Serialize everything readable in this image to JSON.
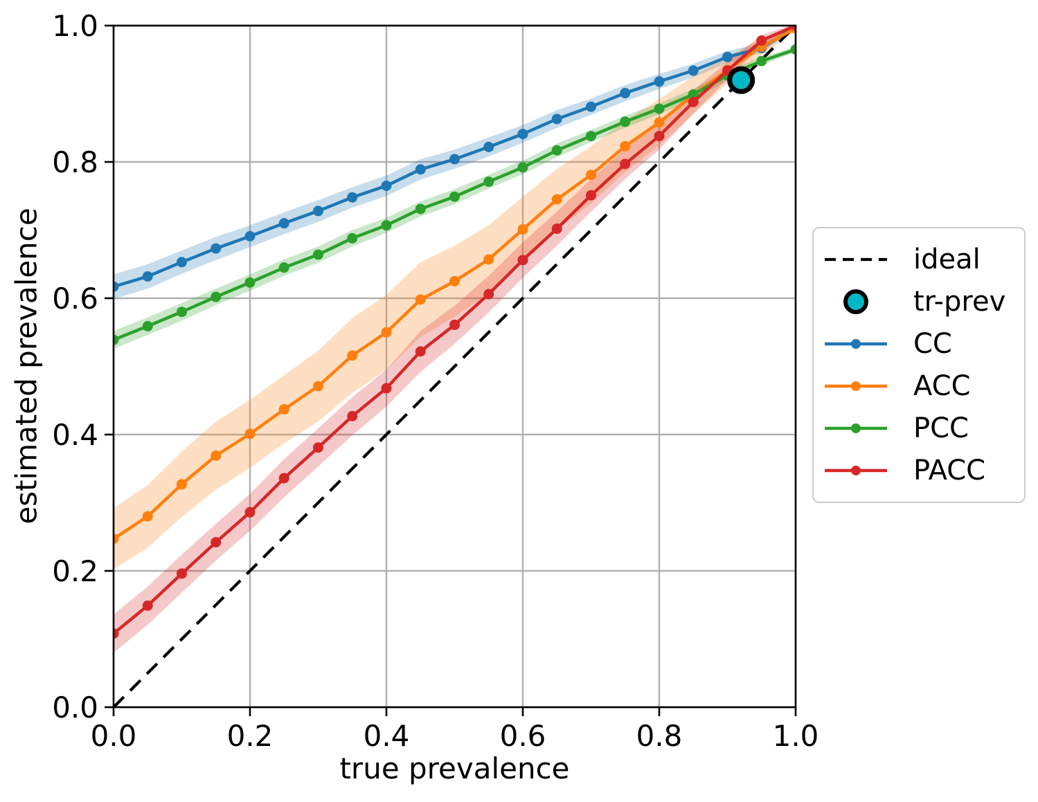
{
  "figure": {
    "background": "#ffffff",
    "title": ""
  },
  "axes": {
    "xlabel": "true prevalence",
    "ylabel": "estimated prevalence",
    "xlim": [
      0.0,
      1.0
    ],
    "ylim": [
      0.0,
      1.0
    ],
    "xticks": [
      0.0,
      0.2,
      0.4,
      0.6,
      0.8,
      1.0
    ],
    "xtick_labels": [
      "0.0",
      "0.2",
      "0.4",
      "0.6",
      "0.8",
      "1.0"
    ],
    "yticks": [
      0.0,
      0.2,
      0.4,
      0.6,
      0.8,
      1.0
    ],
    "ytick_labels": [
      "0.0",
      "0.2",
      "0.4",
      "0.6",
      "0.8",
      "1.0"
    ],
    "grid": true,
    "grid_color": "#b0b0b0",
    "spine_color": "#000000",
    "tick_color": "#000000"
  },
  "legend": {
    "position": "outside-center-right",
    "border_color": "#cccccc",
    "entries": [
      {
        "label": "ideal",
        "swatch": "dashed-line",
        "color": "#000000"
      },
      {
        "label": "tr-prev",
        "swatch": "circle-marker",
        "color": "#00b7c3",
        "edge_color": "#000000"
      },
      {
        "label": "CC",
        "swatch": "line-marker",
        "color": "#1f77b4"
      },
      {
        "label": "ACC",
        "swatch": "line-marker",
        "color": "#ff7f0e"
      },
      {
        "label": "PCC",
        "swatch": "line-marker",
        "color": "#2ca02c"
      },
      {
        "label": "PACC",
        "swatch": "line-marker",
        "color": "#d62728"
      }
    ]
  },
  "chart_data": {
    "type": "line",
    "title": "",
    "xlabel": "true prevalence",
    "ylabel": "estimated prevalence",
    "xlim": [
      0.0,
      1.0
    ],
    "ylim": [
      0.0,
      1.0
    ],
    "grid": true,
    "legend_position": "center right, outside axes",
    "x": [
      0.0,
      0.05,
      0.1,
      0.15,
      0.2,
      0.25,
      0.3,
      0.35,
      0.4,
      0.45,
      0.5,
      0.55,
      0.6,
      0.65,
      0.7,
      0.75,
      0.8,
      0.85,
      0.9,
      0.95,
      1.0
    ],
    "series": [
      {
        "name": "CC",
        "color": "#1f77b4",
        "marker": "o",
        "values": [
          0.617,
          0.632,
          0.653,
          0.673,
          0.691,
          0.71,
          0.728,
          0.748,
          0.765,
          0.789,
          0.804,
          0.822,
          0.841,
          0.863,
          0.881,
          0.901,
          0.918,
          0.934,
          0.954,
          0.967,
          0.998
        ],
        "band_halfwidth": [
          0.018,
          0.018,
          0.017,
          0.017,
          0.016,
          0.016,
          0.016,
          0.015,
          0.015,
          0.015,
          0.014,
          0.014,
          0.013,
          0.013,
          0.012,
          0.012,
          0.011,
          0.01,
          0.009,
          0.007,
          0.003
        ]
      },
      {
        "name": "ACC",
        "color": "#ff7f0e",
        "marker": "o",
        "values": [
          0.247,
          0.28,
          0.327,
          0.369,
          0.401,
          0.437,
          0.471,
          0.516,
          0.55,
          0.598,
          0.625,
          0.657,
          0.701,
          0.745,
          0.781,
          0.823,
          0.858,
          0.898,
          0.935,
          0.969,
          0.996
        ],
        "band_halfwidth": [
          0.045,
          0.046,
          0.048,
          0.05,
          0.05,
          0.05,
          0.052,
          0.055,
          0.055,
          0.055,
          0.052,
          0.05,
          0.048,
          0.045,
          0.042,
          0.038,
          0.034,
          0.028,
          0.02,
          0.012,
          0.004
        ]
      },
      {
        "name": "PCC",
        "color": "#2ca02c",
        "marker": "o",
        "values": [
          0.539,
          0.559,
          0.58,
          0.602,
          0.623,
          0.645,
          0.664,
          0.688,
          0.707,
          0.731,
          0.749,
          0.771,
          0.792,
          0.817,
          0.838,
          0.859,
          0.878,
          0.899,
          0.927,
          0.948,
          0.965
        ],
        "band_halfwidth": [
          0.013,
          0.013,
          0.013,
          0.012,
          0.012,
          0.012,
          0.012,
          0.012,
          0.011,
          0.011,
          0.011,
          0.01,
          0.01,
          0.01,
          0.009,
          0.009,
          0.008,
          0.008,
          0.007,
          0.006,
          0.004
        ]
      },
      {
        "name": "PACC",
        "color": "#d62728",
        "marker": "o",
        "values": [
          0.108,
          0.149,
          0.196,
          0.242,
          0.286,
          0.336,
          0.381,
          0.427,
          0.468,
          0.522,
          0.561,
          0.606,
          0.656,
          0.702,
          0.751,
          0.797,
          0.838,
          0.888,
          0.934,
          0.978,
          1.0
        ],
        "band_halfwidth": [
          0.028,
          0.028,
          0.028,
          0.027,
          0.027,
          0.028,
          0.028,
          0.028,
          0.027,
          0.03,
          0.028,
          0.027,
          0.026,
          0.025,
          0.024,
          0.022,
          0.02,
          0.017,
          0.013,
          0.008,
          0.003
        ]
      }
    ],
    "ideal_line": {
      "label": "ideal",
      "from": [
        0.0,
        0.0
      ],
      "to": [
        1.0,
        1.0
      ],
      "style": "dashed",
      "color": "#000000"
    },
    "tr_prev_point": {
      "label": "tr-prev",
      "x": 0.92,
      "y": 0.92,
      "color": "#00b7c3",
      "edge_color": "#000000"
    }
  }
}
